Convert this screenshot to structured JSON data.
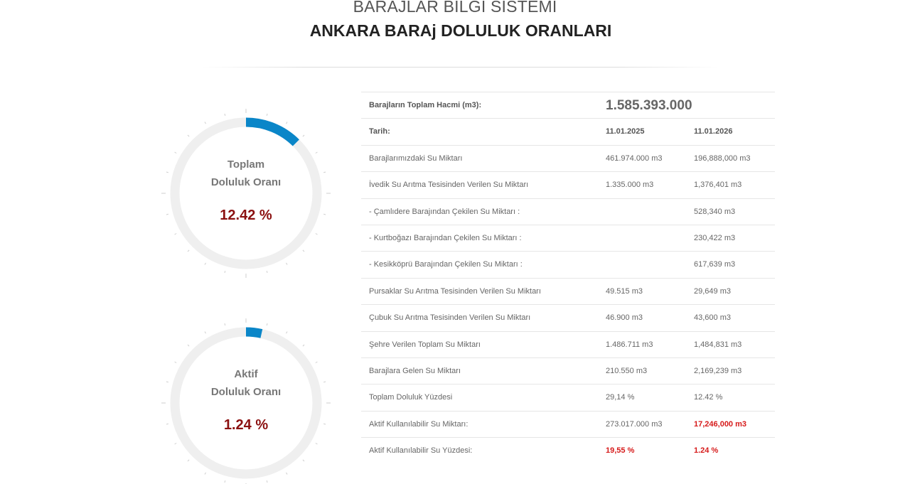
{
  "header": {
    "system_title": "BARAJLAR BİLGİ SİSTEMİ",
    "page_title": "ANKARA BARAj DOLULUK ORANLARI"
  },
  "gauges": [
    {
      "label_line1": "Toplam",
      "label_line2": "Doluluk Oranı",
      "value_text": "12.42 %",
      "fill_percent": 12.42
    },
    {
      "label_line1": "Aktif",
      "label_line2": "Doluluk Oranı",
      "value_text": "1.24 %",
      "fill_percent": 1.24
    }
  ],
  "colors": {
    "gauge_fill": "#0a86c8",
    "gauge_track": "#efefef",
    "value_text": "#8b1010",
    "highlight": "#d61a1a"
  },
  "table": {
    "total_volume_label": "Barajların Toplam Hacmi (m3):",
    "total_volume_value": "1.585.393.000",
    "date_label": "Tarih:",
    "date_a": "11.01.2025",
    "date_b": "11.01.2026",
    "rows": [
      {
        "label": "Barajlarımızdaki Su Miktarı",
        "a": "461.974.000 m3",
        "b": "196,888,000 m3"
      },
      {
        "label": "İvedik Su Arıtma Tesisinden Verilen Su Miktarı",
        "a": "1.335.000 m3",
        "b": "1,376,401 m3"
      },
      {
        "label": "- Çamlıdere Barajından Çekilen Su Miktarı :",
        "a": "",
        "b": "528,340 m3"
      },
      {
        "label": "- Kurtboğazı Barajından Çekilen Su Miktarı :",
        "a": "",
        "b": "230,422 m3"
      },
      {
        "label": "- Kesikköprü Barajından Çekilen Su Miktarı :",
        "a": "",
        "b": "617,639 m3"
      },
      {
        "label": "Pursaklar Su Arıtma Tesisinden Verilen Su Miktarı",
        "a": "49.515 m3",
        "b": "29,649 m3"
      },
      {
        "label": "Çubuk Su Arıtma Tesisinden Verilen Su Miktarı",
        "a": "46.900 m3",
        "b": "43,600 m3"
      },
      {
        "label": "Şehre Verilen Toplam Su Miktarı",
        "a": "1.486.711 m3",
        "b": "1,484,831 m3"
      },
      {
        "label": "Barajlara Gelen Su Miktarı",
        "a": "210.550 m3",
        "b": "2,169,239 m3"
      },
      {
        "label": "Toplam Doluluk Yüzdesi",
        "a": "29,14 %",
        "b": "12.42 %"
      },
      {
        "label": "Aktif Kullanılabilir Su Miktarı:",
        "a": "273.017.000 m3",
        "b": "17,246,000 m3"
      },
      {
        "label": "Aktif Kullanılabilir Su Yüzdesi:",
        "a": "19,55 %",
        "b": "1.24 %"
      }
    ]
  }
}
